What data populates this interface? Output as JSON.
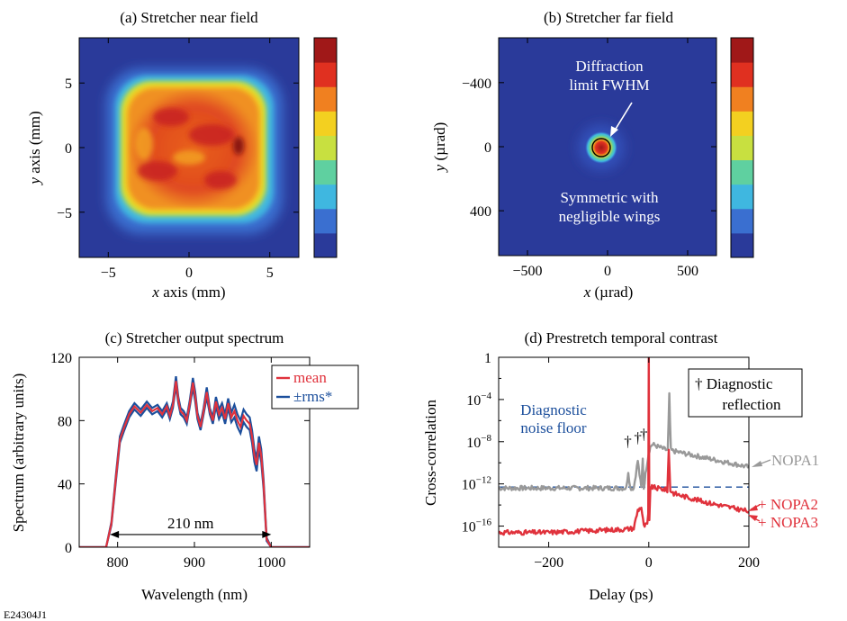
{
  "figure_id": "E24304J1",
  "chart_data": [
    {
      "type": "heatmap",
      "title": "(a) Stretcher near field",
      "xlabel": {
        "var": "x",
        "rest": " axis (mm)"
      },
      "ylabel": {
        "var": "y",
        "rest": " axis (mm)"
      },
      "xlim": [
        -6.8,
        6.8
      ],
      "ylim": [
        -8.5,
        8.5
      ],
      "xticks": [
        -5,
        0,
        5
      ],
      "yticks": [
        -5,
        0,
        5
      ],
      "colorbar": true,
      "colormap": [
        "#2a3a9a",
        "#3a6fd0",
        "#3fb7e0",
        "#5fd0a0",
        "#c8e040",
        "#f3d020",
        "#f08020",
        "#e03020",
        "#a01818"
      ],
      "feature": "near-flat-top beam, rounded square about 7 mm across, centered near x=-0.5 mm"
    },
    {
      "type": "heatmap",
      "title": "(b) Stretcher far field",
      "xlabel": {
        "var": "x",
        "rest": " (µrad)"
      },
      "ylabel": {
        "var": "y",
        "rest": " (µrad)"
      },
      "xlim": [
        -680,
        680
      ],
      "ylim": [
        680,
        -680
      ],
      "xticks": [
        -500,
        0,
        500
      ],
      "yticks": [
        -400,
        0,
        400
      ],
      "tick_labels": {
        "x": [
          "−500",
          "0",
          "500"
        ],
        "y": [
          "−400",
          "0",
          "400"
        ]
      },
      "colorbar": true,
      "spot_center": [
        -40,
        0
      ],
      "annotations": [
        {
          "lines": [
            "Diffraction",
            "limit FWHM"
          ]
        },
        {
          "lines": [
            "Symmetric with",
            "negligible wings"
          ]
        }
      ]
    },
    {
      "type": "line",
      "title": "(c) Stretcher output spectrum",
      "xlabel": "Wavelength (nm)",
      "ylabel": "Spectrum (arbitrary units)",
      "xlim": [
        750,
        1050
      ],
      "ylim": [
        0,
        120
      ],
      "xticks": [
        800,
        900,
        1000
      ],
      "yticks": [
        0,
        40,
        80,
        120
      ],
      "legend": "top-right",
      "series": [
        {
          "name": "mean",
          "color": "#e0323c",
          "x": [
            750,
            785,
            792,
            798,
            803,
            808,
            815,
            822,
            830,
            838,
            845,
            852,
            858,
            864,
            868,
            872,
            876,
            879,
            882,
            886,
            890,
            894,
            898,
            901,
            904,
            908,
            912,
            916,
            920,
            924,
            928,
            932,
            936,
            940,
            944,
            948,
            952,
            956,
            960,
            964,
            968,
            972,
            975,
            978,
            981,
            984,
            987,
            990,
            994,
            1000,
            1050
          ],
          "y": [
            0,
            0,
            15,
            45,
            68,
            75,
            84,
            89,
            85,
            90,
            86,
            88,
            84,
            89,
            83,
            90,
            105,
            93,
            86,
            84,
            80,
            91,
            104,
            95,
            83,
            76,
            86,
            98,
            86,
            80,
            92,
            84,
            88,
            81,
            91,
            82,
            86,
            80,
            76,
            83,
            80,
            78,
            70,
            58,
            52,
            66,
            58,
            40,
            5,
            0,
            0
          ]
        },
        {
          "name": "±rms*",
          "color": "#1c4f9c",
          "x": [
            750,
            785,
            792,
            798,
            803,
            808,
            815,
            822,
            830,
            838,
            845,
            852,
            858,
            864,
            868,
            872,
            876,
            879,
            882,
            886,
            890,
            894,
            898,
            901,
            904,
            908,
            912,
            916,
            920,
            924,
            928,
            932,
            936,
            940,
            944,
            948,
            952,
            956,
            960,
            964,
            968,
            972,
            975,
            978,
            981,
            984,
            987,
            990,
            994,
            1000,
            1050
          ],
          "y": [
            0,
            0,
            14,
            43,
            66,
            73,
            82,
            87,
            83,
            88,
            84,
            86,
            82,
            87,
            81,
            88,
            102,
            91,
            84,
            82,
            78,
            89,
            101,
            92,
            81,
            74,
            84,
            95,
            84,
            78,
            89,
            81,
            85,
            78,
            88,
            79,
            82,
            76,
            72,
            79,
            76,
            74,
            66,
            54,
            48,
            62,
            54,
            37,
            4,
            0,
            0
          ],
          "y_upper": [
            0,
            0,
            16,
            47,
            70,
            77,
            86,
            91,
            87,
            92,
            88,
            90,
            86,
            91,
            85,
            92,
            108,
            95,
            88,
            86,
            82,
            93,
            107,
            98,
            85,
            78,
            88,
            101,
            88,
            82,
            95,
            87,
            91,
            84,
            94,
            85,
            90,
            84,
            80,
            87,
            84,
            82,
            74,
            62,
            56,
            70,
            62,
            43,
            6,
            0,
            0
          ]
        }
      ],
      "annotations": [
        {
          "text": "210 nm",
          "arrow_from": 790,
          "arrow_to": 1000,
          "y": 8
        }
      ]
    },
    {
      "type": "line",
      "title": "(d) Prestretch temporal contrast",
      "xlabel": "Delay (ps)",
      "ylabel": "Cross-correlation",
      "xlim": [
        -300,
        200
      ],
      "y_scale": "log",
      "ylim_exp": [
        -18,
        0
      ],
      "xticks": [
        -200,
        0,
        200
      ],
      "yticks_exp": [
        0,
        -4,
        -8,
        -12,
        -16
      ],
      "ytick_labels": [
        {
          "base": "1",
          "exp": ""
        },
        {
          "base": "10",
          "exp": "−4"
        },
        {
          "base": "10",
          "exp": "−8"
        },
        {
          "base": "10",
          "exp": "−12"
        },
        {
          "base": "10",
          "exp": "−16"
        }
      ],
      "noise_floor_exp": -12.3,
      "series": [
        {
          "name": "NOPA1",
          "color": "#999999",
          "x": [
            -300,
            -100,
            -45,
            -41,
            -37,
            -30,
            -22,
            -15,
            -12,
            -10,
            -5,
            0,
            3,
            6,
            10,
            20,
            30,
            38,
            41,
            44,
            50,
            80,
            120,
            160,
            200
          ],
          "y_exp": [
            -12.4,
            -12.4,
            -12.4,
            -10.8,
            -12.4,
            -12.4,
            -9.8,
            -12.4,
            -9.5,
            -12.4,
            -10.5,
            -9.0,
            -8.5,
            -8.3,
            -8.3,
            -8.5,
            -8.7,
            -8.8,
            -3.6,
            -8.8,
            -8.9,
            -9.2,
            -9.6,
            -10.0,
            -10.4
          ]
        },
        {
          "name": "+ NOPA2\n+ NOPA3",
          "color": "#e0323c",
          "x": [
            -300,
            -200,
            -100,
            -50,
            -30,
            -22,
            -15,
            -10,
            -5,
            -3,
            -1,
            0,
            1,
            3,
            8,
            15,
            30,
            37,
            40,
            43,
            50,
            80,
            120,
            160,
            200
          ],
          "y_exp": [
            -16.6,
            -16.6,
            -16.4,
            -16.3,
            -16.2,
            -14.5,
            -14.2,
            -16.0,
            -15.9,
            -15.8,
            -15.0,
            0.0,
            -15.5,
            -12.4,
            -12.3,
            -12.4,
            -12.5,
            -12.6,
            -8.8,
            -12.6,
            -12.9,
            -13.3,
            -13.8,
            -14.2,
            -14.6
          ]
        }
      ],
      "labels": [
        "NOPA1",
        "+ NOPA2",
        "+ NOPA3"
      ],
      "annotations": [
        {
          "text": "†",
          "x": -42
        },
        {
          "text": "†",
          "x": -22
        },
        {
          "text": "†",
          "x": -10
        },
        {
          "lines": [
            "Diagnostic",
            "noise floor"
          ]
        },
        {
          "lines": [
            "† Diagnostic",
            "reflection"
          ]
        }
      ]
    }
  ]
}
